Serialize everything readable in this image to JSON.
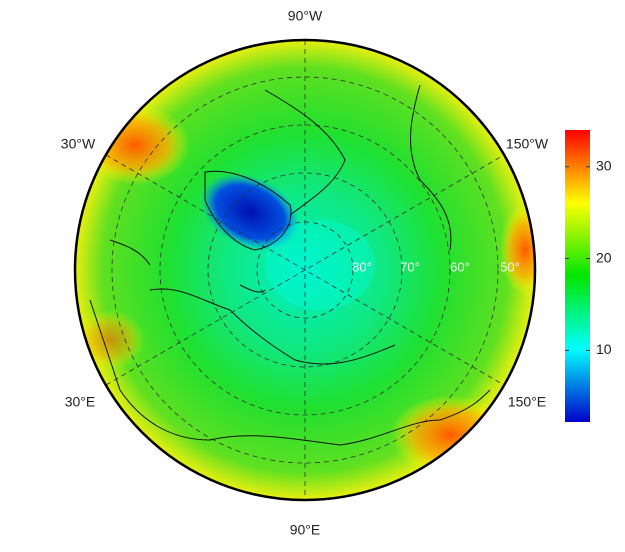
{
  "map": {
    "meridian_labels": [
      "90°W",
      "30°W",
      "150°W",
      "30°E",
      "150°E",
      "90°E"
    ],
    "latitude_labels": [
      "80°",
      "70°",
      "60°",
      "50°"
    ]
  },
  "colorbar": {
    "range": [
      2.2,
      34
    ],
    "ticks": [
      10,
      20,
      30
    ],
    "colormap": [
      "#0000c8",
      "#00ffff",
      "#00e600",
      "#ffff00",
      "#ff0000"
    ]
  }
}
